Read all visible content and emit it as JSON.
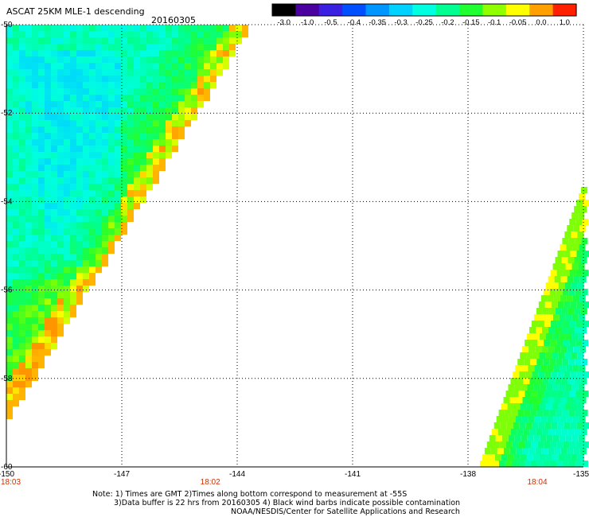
{
  "chart_data": {
    "type": "heatmap",
    "title": "ASCAT 25KM MLE-1 descending",
    "date": "20160305",
    "colorbar": {
      "tick_labels": [
        "-3.0",
        "-1.0",
        "-0.5",
        "-0.4",
        "-0.35",
        "-0.3",
        "-0.25",
        "-0.2",
        "-0.15",
        "-0.1",
        "-0.05",
        "0.0",
        "1.0"
      ],
      "colors": [
        "#000000",
        "#4b00a0",
        "#3a20e0",
        "#0050ff",
        "#0096ff",
        "#00d2ff",
        "#00ffe0",
        "#00ff90",
        "#20ff30",
        "#90ff00",
        "#ffff00",
        "#ffa000",
        "#ff2000"
      ]
    },
    "x_ticks": [
      "-150",
      "-147",
      "-144",
      "-141",
      "-138",
      "-135"
    ],
    "x_tick_values": [
      -150,
      -147,
      -144,
      -141,
      -138,
      -135
    ],
    "y_ticks": [
      "-50",
      "-52",
      "-54",
      "-56",
      "-58",
      "-60"
    ],
    "y_tick_values": [
      -50,
      -52,
      -54,
      -56,
      -58,
      -60
    ],
    "xlim": [
      -150,
      -135
    ],
    "ylim": [
      -60,
      -50
    ],
    "grid": true,
    "time_labels": [
      {
        "text": "18:03",
        "lon": -150
      },
      {
        "text": "18:02",
        "lon": -144.7
      },
      {
        "text": "18:04",
        "lon": -136.2
      }
    ],
    "time_color": "#d03000",
    "swaths": [
      {
        "name": "west",
        "cells": 3
      },
      {
        "name": "east",
        "cells": 3
      }
    ]
  },
  "notes": [
    "Note: 1) Times are GMT 2)Times along bottom correspond to measurement at -55S",
    "3)Data buffer is 22 hrs from 20160305 4) Black wind barbs indicate possible contamination",
    "NOAA/NESDIS/Center for Satellite Applications and Research"
  ]
}
